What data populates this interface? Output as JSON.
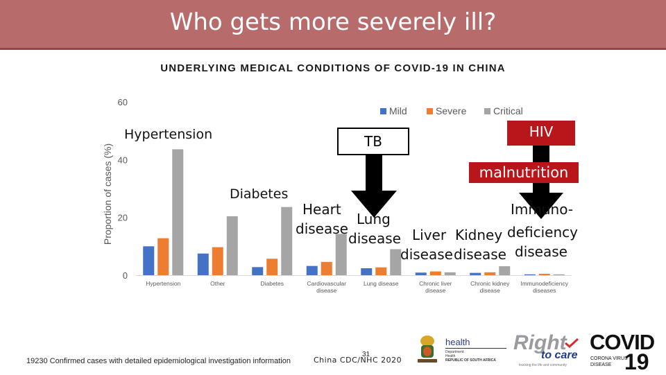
{
  "title": "Who gets more severely ill?",
  "subtitle": "UNDERLYING MEDICAL CONDITIONS OF COVID-19 IN CHINA",
  "chart_data": {
    "type": "bar",
    "categories": [
      [
        "Hypertension"
      ],
      [
        "Other"
      ],
      [
        "Diabetes"
      ],
      [
        "Cardiovascular",
        "disease"
      ],
      [
        "Lung disease"
      ],
      [
        "Chronic liver",
        "disease"
      ],
      [
        "Chronic kidney",
        "disease"
      ],
      [
        "Immunodeficiency",
        "diseases"
      ]
    ],
    "series": [
      {
        "name": "Mild",
        "color": "#4472c4",
        "values": [
          10,
          7.5,
          2.8,
          3.2,
          2.4,
          0.9,
          0.8,
          0.3
        ]
      },
      {
        "name": "Severe",
        "color": "#ed7d31",
        "values": [
          12.8,
          9.7,
          5.7,
          4.6,
          2.7,
          1.3,
          1.0,
          0.5
        ]
      },
      {
        "name": "Critical",
        "color": "#a5a5a5",
        "values": [
          43.6,
          20.4,
          23.6,
          14.3,
          9.0,
          1.0,
          3.1,
          0.3
        ]
      }
    ],
    "ylabel": "Proportion of cases (%)",
    "yticks": [
      0,
      20,
      40,
      60
    ],
    "ylim": [
      0,
      60
    ],
    "legend_position": "top-right",
    "grid": false
  },
  "overlays": {
    "hypertension": "Hypertension",
    "diabetes": "Diabetes",
    "heart_line1": "Heart",
    "heart_line2": "disease",
    "lung_line1": "Lung",
    "lung_line2": "disease",
    "liver_line1": "Liver",
    "liver_line2": "disease",
    "kidney_line1": "Kidney",
    "kidney_line2": "disease",
    "immuno_line1": "Immuno-",
    "immuno_line2": "deficiency",
    "immuno_line3": "disease",
    "tb": "TB",
    "hiv": "HIV",
    "malnutrition": "malnutrition"
  },
  "footer": {
    "cases": "19230 Confirmed cases with detailed epidemiological investigation information",
    "source": "China CDC/NHC 2020",
    "page_number": "31"
  },
  "logos": {
    "health_word": "health",
    "health_sub1": "Department:",
    "health_sub2": "Health",
    "health_sub3": "REPUBLIC OF SOUTH AFRICA",
    "rtc_word1": "Right",
    "rtc_word2": "to care",
    "rtc_tagline": "tracking the life and community",
    "covid_word": "COVID",
    "covid_sub1": "CORONA VIRUS",
    "covid_sub2": "DISEASE",
    "covid_num": "19"
  },
  "colors": {
    "title_bar": "#b86b6b",
    "arrow_red": "#b8161b",
    "arrow_black": "#000000"
  }
}
